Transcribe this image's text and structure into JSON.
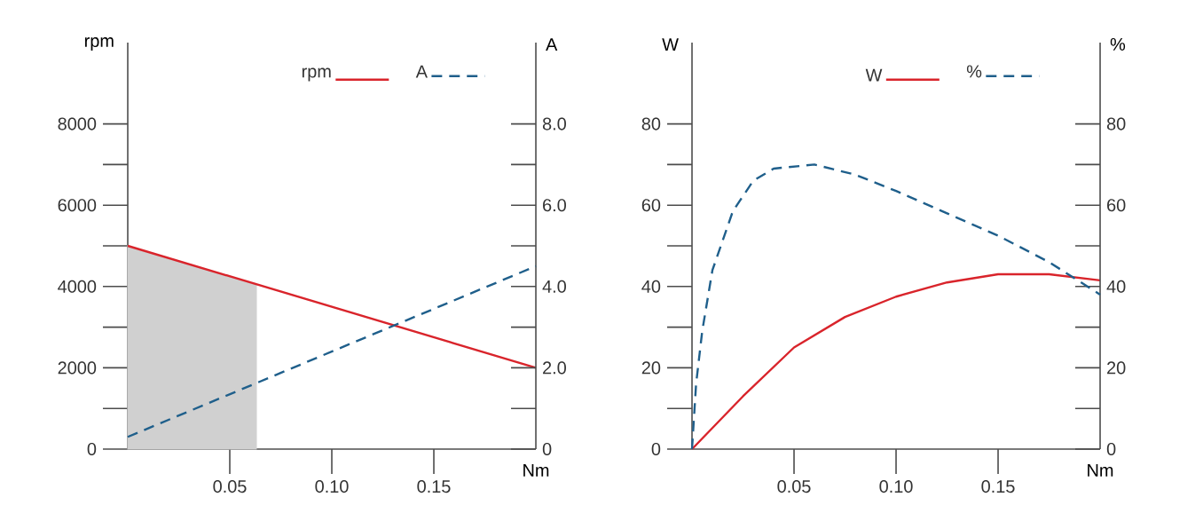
{
  "chart_data": [
    {
      "type": "line",
      "xlabel": "Nm",
      "ylabel": "rpm",
      "y2label": "A",
      "legend": "top",
      "xlim": [
        0,
        0.2
      ],
      "xticks": [
        {
          "value": 0.05,
          "label": "0.05"
        },
        {
          "value": 0.1,
          "label": "0.10"
        },
        {
          "value": 0.15,
          "label": "0.15"
        }
      ],
      "ylim": [
        0,
        10000
      ],
      "yticks": [
        0,
        {
          "value": 1000,
          "label": null
        },
        2000,
        {
          "value": 3000,
          "label": null
        },
        4000,
        {
          "value": 5000,
          "label": null
        },
        6000,
        {
          "value": 7000,
          "label": null
        },
        8000
      ],
      "y2lim": [
        0,
        10
      ],
      "y2ticks": [
        0,
        {
          "value": 1,
          "label": null
        },
        {
          "value": 2,
          "label": "2.0"
        },
        {
          "value": 3,
          "label": null
        },
        {
          "value": 4,
          "label": "4.0"
        },
        {
          "value": 5,
          "label": null
        },
        {
          "value": 6,
          "label": "6.0"
        },
        {
          "value": 7,
          "label": null
        },
        {
          "value": 8,
          "label": "8.0"
        }
      ],
      "series": [
        {
          "type": "area",
          "color": "#d0d0d0",
          "x": [
            0,
            0.063
          ],
          "values": [
            5000,
            4050
          ]
        },
        {
          "name": "rpm",
          "color": "#d9242b",
          "line_style": "solid",
          "x": [
            0,
            0.2
          ],
          "values": [
            5000,
            2000
          ]
        },
        {
          "name": "A",
          "color": "#1f5f8b",
          "line_style": "dashed",
          "axis": "y2",
          "x": [
            0,
            0.2
          ],
          "values": [
            0.3,
            4.5
          ]
        }
      ]
    },
    {
      "type": "line",
      "xlabel": "Nm",
      "ylabel": "W",
      "y2label": "%",
      "legend": "top",
      "xlim": [
        0,
        0.2
      ],
      "xticks": [
        {
          "value": 0.05,
          "label": "0.05"
        },
        {
          "value": 0.1,
          "label": "0.10"
        },
        {
          "value": 0.15,
          "label": "0.15"
        }
      ],
      "ylim": [
        0,
        100
      ],
      "yticks": [
        0,
        {
          "value": 10,
          "label": null
        },
        20,
        {
          "value": 30,
          "label": null
        },
        40,
        {
          "value": 50,
          "label": null
        },
        60,
        {
          "value": 70,
          "label": null
        },
        80
      ],
      "y2lim": [
        0,
        100
      ],
      "y2ticks": [
        0,
        {
          "value": 10,
          "label": null
        },
        20,
        {
          "value": 30,
          "label": null
        },
        40,
        {
          "value": 50,
          "label": null
        },
        60,
        {
          "value": 70,
          "label": null
        },
        80
      ],
      "series": [
        {
          "name": "W",
          "color": "#d9242b",
          "line_style": "solid",
          "x": [
            0,
            0.025,
            0.05,
            0.075,
            0.1,
            0.125,
            0.15,
            0.165,
            0.175,
            0.2
          ],
          "values": [
            0,
            13,
            25,
            32.5,
            37.5,
            41,
            43,
            43,
            43,
            41.5
          ]
        },
        {
          "name": "%",
          "color": "#1f5f8b",
          "line_style": "dashed",
          "axis": "y2",
          "x": [
            0,
            0.002,
            0.005,
            0.01,
            0.02,
            0.03,
            0.04,
            0.06,
            0.08,
            0.1,
            0.125,
            0.15,
            0.175,
            0.2
          ],
          "values": [
            0,
            16,
            29,
            44,
            58.5,
            66,
            69,
            70,
            67.5,
            63.5,
            58,
            52.5,
            46,
            38
          ]
        }
      ]
    }
  ]
}
